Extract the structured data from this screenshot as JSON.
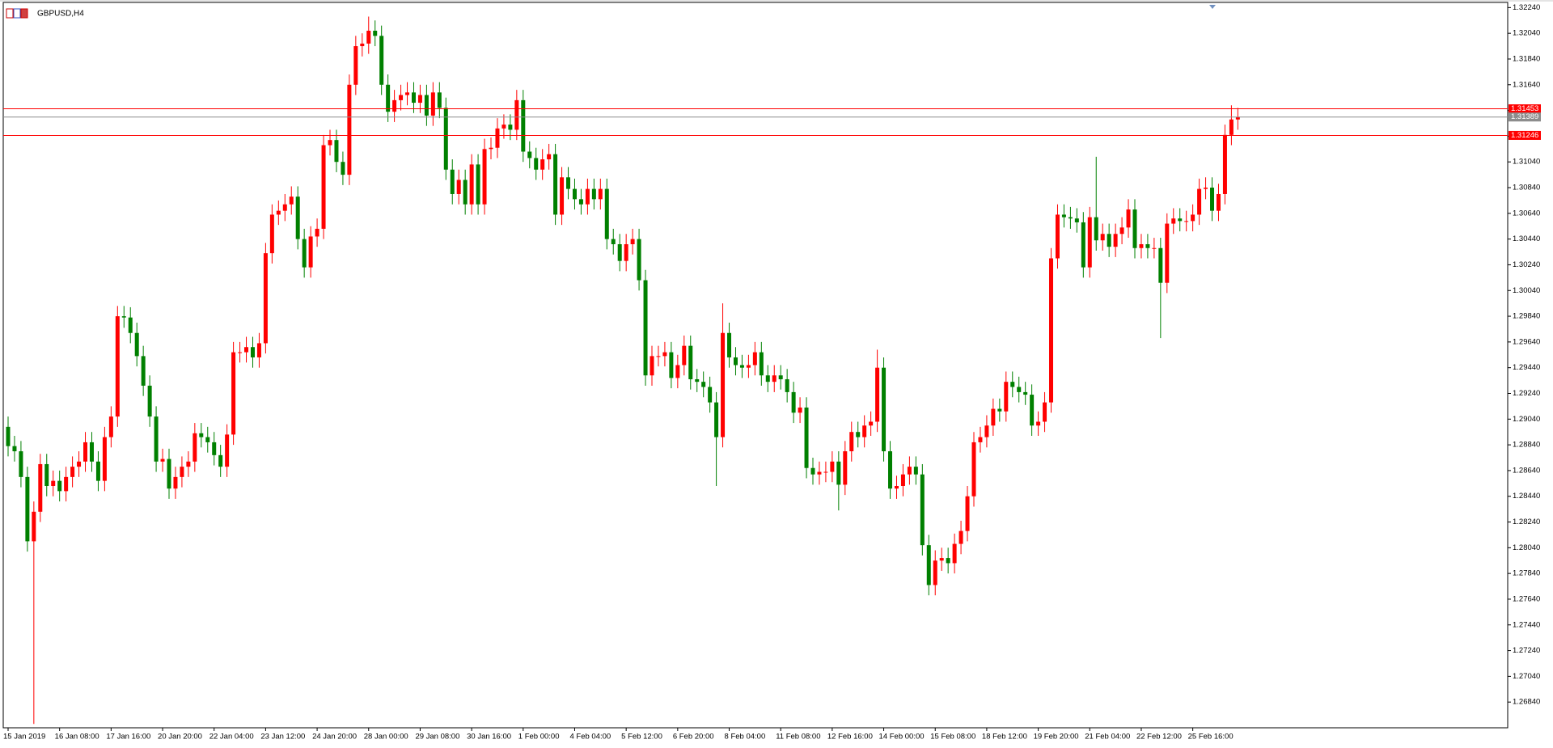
{
  "chart_data": {
    "type": "candlestick",
    "title": "GBPUSD,H4",
    "up_color": "#ff0000",
    "down_color": "#008000",
    "categories": [
      "15 Jan 2019",
      null,
      null,
      null,
      null,
      null,
      null,
      null,
      "16 Jan 08:00",
      null,
      null,
      null,
      null,
      null,
      null,
      null,
      "17 Jan 16:00",
      null,
      null,
      null,
      null,
      null,
      null,
      null,
      "20 Jan 20:00",
      null,
      null,
      null,
      null,
      null,
      null,
      null,
      "22 Jan 04:00",
      null,
      null,
      null,
      null,
      null,
      null,
      null,
      "23 Jan 12:00",
      null,
      null,
      null,
      null,
      null,
      null,
      null,
      "24 Jan 20:00",
      null,
      null,
      null,
      null,
      null,
      null,
      null,
      "28 Jan 00:00",
      null,
      null,
      null,
      null,
      null,
      null,
      null,
      "29 Jan 08:00",
      null,
      null,
      null,
      null,
      null,
      null,
      null,
      "30 Jan 16:00",
      null,
      null,
      null,
      null,
      null,
      null,
      null,
      "1 Feb 00:00",
      null,
      null,
      null,
      null,
      null,
      null,
      null,
      "4 Feb 04:00",
      null,
      null,
      null,
      null,
      null,
      null,
      null,
      "5 Feb 12:00",
      null,
      null,
      null,
      null,
      null,
      null,
      null,
      "6 Feb 20:00",
      null,
      null,
      null,
      null,
      null,
      null,
      null,
      "8 Feb 04:00",
      null,
      null,
      null,
      null,
      null,
      null,
      null,
      "11 Feb 08:00",
      null,
      null,
      null,
      null,
      null,
      null,
      null,
      "12 Feb 16:00",
      null,
      null,
      null,
      null,
      null,
      null,
      null,
      "14 Feb 00:00",
      null,
      null,
      null,
      null,
      null,
      null,
      null,
      "15 Feb 08:00",
      null,
      null,
      null,
      null,
      null,
      null,
      null,
      "18 Feb 12:00",
      null,
      null,
      null,
      null,
      null,
      null,
      null,
      "19 Feb 20:00",
      null,
      null,
      null,
      null,
      null,
      null,
      null,
      "21 Feb 04:00",
      null,
      null,
      null,
      null,
      null,
      null,
      null,
      "22 Feb 12:00",
      null,
      null,
      null,
      null,
      null,
      null,
      null,
      "25 Feb 16:00",
      null,
      null,
      null,
      null,
      null,
      null,
      null
    ],
    "open": [
      1.2898,
      1.2883,
      1.2879,
      1.2859,
      1.2809,
      1.2832,
      1.2869,
      1.2852,
      1.2856,
      1.2848,
      1.2859,
      1.2867,
      1.2871,
      1.2886,
      1.2871,
      1.2856,
      1.289,
      1.2906,
      1.2984,
      1.2983,
      1.2971,
      1.2953,
      1.293,
      1.2906,
      1.2871,
      1.2873,
      1.285,
      1.2859,
      1.2867,
      1.2871,
      1.2893,
      1.289,
      1.2886,
      1.2876,
      1.2867,
      1.2892,
      1.2956,
      1.2956,
      1.296,
      1.2952,
      1.2963,
      1.3033,
      1.3063,
      1.3066,
      1.3071,
      1.3077,
      1.3044,
      1.3022,
      1.3046,
      1.3052,
      1.3117,
      1.3121,
      1.3104,
      1.3094,
      1.3164,
      1.3194,
      1.3196,
      1.3206,
      1.3202,
      1.3164,
      1.3143,
      1.3152,
      1.3156,
      1.3158,
      1.315,
      1.3156,
      1.314,
      1.3158,
      1.3146,
      1.3098,
      1.3079,
      1.309,
      1.3071,
      1.3102,
      1.3071,
      1.3114,
      1.3115,
      1.313,
      1.3133,
      1.3129,
      1.3152,
      1.3112,
      1.3107,
      1.3098,
      1.3106,
      1.311,
      1.3063,
      1.3092,
      1.3083,
      1.3075,
      1.3071,
      1.3083,
      1.3075,
      1.3083,
      1.3044,
      1.304,
      1.3027,
      1.304,
      1.3044,
      1.3012,
      1.2938,
      1.2953,
      1.2953,
      1.2956,
      1.2936,
      1.2946,
      1.2961,
      1.2935,
      1.2933,
      1.2929,
      1.2917,
      1.289,
      1.2971,
      1.2952,
      1.2946,
      1.2944,
      1.2946,
      1.2956,
      1.2938,
      1.2933,
      1.2938,
      1.2935,
      1.2925,
      1.2909,
      1.2913,
      1.2866,
      1.2861,
      1.2863,
      1.2863,
      1.2871,
      1.2853,
      1.2879,
      1.2894,
      1.289,
      1.2899,
      1.2902,
      1.2944,
      1.2879,
      1.285,
      1.2852,
      1.2861,
      1.2867,
      1.2861,
      1.2806,
      1.2775,
      1.2794,
      1.2796,
      1.2792,
      1.2807,
      1.2817,
      1.2844,
      1.2886,
      1.289,
      1.2899,
      1.2912,
      1.291,
      1.2933,
      1.2929,
      1.2925,
      1.2923,
      1.2899,
      1.2902,
      1.2917,
      1.3029,
      1.3063,
      1.3061,
      1.306,
      1.3057,
      1.3022,
      1.3061,
      1.3043,
      1.3048,
      1.3038,
      1.3048,
      1.3053,
      1.3067,
      1.3037,
      1.304,
      1.3037,
      1.3037,
      1.301,
      1.3056,
      1.306,
      1.3058,
      1.3058,
      1.3063,
      1.3083,
      1.3084,
      1.3066,
      1.3079,
      1.3125,
      1.3137
    ],
    "high": [
      1.2906,
      1.2891,
      1.2887,
      1.2867,
      1.284,
      1.2877,
      1.2877,
      1.2864,
      1.2864,
      1.2867,
      1.2875,
      1.2879,
      1.2894,
      1.2894,
      1.2879,
      1.2898,
      1.2914,
      1.2992,
      1.2992,
      1.2991,
      1.2979,
      1.2961,
      1.2938,
      1.2914,
      1.2881,
      1.2881,
      1.2867,
      1.2875,
      1.2879,
      1.2901,
      1.2901,
      1.2898,
      1.2894,
      1.2884,
      1.29,
      1.2964,
      1.2964,
      1.2968,
      1.2968,
      1.2971,
      1.3041,
      1.3071,
      1.3074,
      1.3079,
      1.3085,
      1.3085,
      1.3052,
      1.3054,
      1.306,
      1.3125,
      1.3129,
      1.3129,
      1.3112,
      1.3172,
      1.3202,
      1.3204,
      1.3217,
      1.3214,
      1.321,
      1.3172,
      1.316,
      1.3164,
      1.3166,
      1.3166,
      1.3164,
      1.3164,
      1.3166,
      1.3166,
      1.3154,
      1.3106,
      1.3098,
      1.3098,
      1.311,
      1.311,
      1.3122,
      1.3123,
      1.3138,
      1.3141,
      1.3141,
      1.316,
      1.316,
      1.312,
      1.3115,
      1.3114,
      1.3118,
      1.3118,
      1.31,
      1.31,
      1.3091,
      1.3083,
      1.3091,
      1.3091,
      1.3091,
      1.3091,
      1.3052,
      1.3048,
      1.3048,
      1.3052,
      1.3052,
      1.302,
      1.2961,
      1.2961,
      1.2964,
      1.2964,
      1.2954,
      1.2969,
      1.2969,
      1.2943,
      1.2941,
      1.2937,
      1.2925,
      1.2994,
      1.2979,
      1.296,
      1.2954,
      1.2954,
      1.2964,
      1.2964,
      1.2946,
      1.2946,
      1.2946,
      1.2943,
      1.2933,
      1.2921,
      1.2921,
      1.2874,
      1.2871,
      1.2871,
      1.2879,
      1.2879,
      1.2887,
      1.2902,
      1.2902,
      1.2907,
      1.291,
      1.2958,
      1.2952,
      1.2887,
      1.286,
      1.2869,
      1.2875,
      1.2875,
      1.2869,
      1.2814,
      1.2802,
      1.2804,
      1.2804,
      1.2815,
      1.2825,
      1.2852,
      1.2894,
      1.2898,
      1.2907,
      1.292,
      1.292,
      1.2941,
      1.2941,
      1.2937,
      1.2933,
      1.2931,
      1.291,
      1.2925,
      1.3037,
      1.3071,
      1.3071,
      1.3069,
      1.3068,
      1.3065,
      1.3069,
      1.3108,
      1.3056,
      1.3056,
      1.3056,
      1.3061,
      1.3075,
      1.3075,
      1.3048,
      1.3048,
      1.3045,
      1.3045,
      1.3064,
      1.3068,
      1.3068,
      1.3066,
      1.3071,
      1.3091,
      1.3092,
      1.3092,
      1.3087,
      1.3133,
      1.3148,
      1.3146
    ],
    "low": [
      1.2875,
      1.2871,
      1.2851,
      1.2801,
      1.2667,
      1.2824,
      1.2844,
      1.2844,
      1.284,
      1.284,
      1.2851,
      1.2859,
      1.2863,
      1.2863,
      1.2848,
      1.2848,
      1.2882,
      1.2898,
      1.2975,
      1.2963,
      1.2945,
      1.2922,
      1.2898,
      1.2863,
      1.2863,
      1.2842,
      1.2842,
      1.2851,
      1.2859,
      1.2863,
      1.2882,
      1.2878,
      1.2868,
      1.2859,
      1.2859,
      1.2884,
      1.2948,
      1.2948,
      1.2944,
      1.2944,
      1.2955,
      1.3025,
      1.3055,
      1.3058,
      1.3063,
      1.3036,
      1.3014,
      1.3014,
      1.3038,
      1.3044,
      1.3109,
      1.3096,
      1.3086,
      1.3086,
      1.3156,
      1.3186,
      1.3188,
      1.3194,
      1.3156,
      1.3135,
      1.3135,
      1.3144,
      1.3148,
      1.3142,
      1.3142,
      1.3132,
      1.3132,
      1.3138,
      1.309,
      1.3071,
      1.3071,
      1.3063,
      1.3063,
      1.3063,
      1.3063,
      1.3106,
      1.3107,
      1.3122,
      1.3121,
      1.3121,
      1.3104,
      1.3099,
      1.309,
      1.309,
      1.3098,
      1.3055,
      1.3055,
      1.3075,
      1.3067,
      1.3063,
      1.3063,
      1.3067,
      1.3067,
      1.3036,
      1.3032,
      1.3019,
      1.3019,
      1.3032,
      1.3004,
      1.293,
      1.293,
      1.2945,
      1.2945,
      1.2928,
      1.2928,
      1.2938,
      1.2927,
      1.2925,
      1.2921,
      1.2909,
      1.2852,
      1.2882,
      1.2944,
      1.2938,
      1.2936,
      1.2936,
      1.2938,
      1.293,
      1.2925,
      1.2925,
      1.2927,
      1.2917,
      1.2901,
      1.2901,
      1.2858,
      1.2853,
      1.2853,
      1.2855,
      1.2855,
      1.2833,
      1.2845,
      1.2871,
      1.2882,
      1.2882,
      1.2891,
      1.2894,
      1.2871,
      1.2842,
      1.2842,
      1.2844,
      1.2853,
      1.2853,
      1.2798,
      1.2767,
      1.2767,
      1.2786,
      1.2784,
      1.2784,
      1.2799,
      1.2809,
      1.2836,
      1.2878,
      1.2882,
      1.2891,
      1.2902,
      1.2902,
      1.2921,
      1.2917,
      1.2915,
      1.2891,
      1.2891,
      1.2894,
      1.2909,
      1.3021,
      1.3053,
      1.3052,
      1.3049,
      1.3014,
      1.3014,
      1.3035,
      1.3035,
      1.303,
      1.303,
      1.304,
      1.3045,
      1.3029,
      1.3029,
      1.3029,
      1.3029,
      1.2967,
      1.3002,
      1.3048,
      1.305,
      1.305,
      1.305,
      1.3055,
      1.3075,
      1.3058,
      1.3058,
      1.3071,
      1.3117,
      1.3129
    ],
    "close": [
      1.2883,
      1.2879,
      1.2859,
      1.2809,
      1.2832,
      1.2869,
      1.2852,
      1.2856,
      1.2848,
      1.2859,
      1.2867,
      1.2871,
      1.2886,
      1.2871,
      1.2856,
      1.289,
      1.2906,
      1.2984,
      1.2983,
      1.2971,
      1.2953,
      1.293,
      1.2906,
      1.2871,
      1.2873,
      1.285,
      1.2859,
      1.2867,
      1.2871,
      1.2893,
      1.289,
      1.2886,
      1.2876,
      1.2867,
      1.2892,
      1.2956,
      1.2956,
      1.296,
      1.2952,
      1.2963,
      1.3033,
      1.3063,
      1.3066,
      1.3071,
      1.3077,
      1.3044,
      1.3022,
      1.3046,
      1.3052,
      1.3117,
      1.3121,
      1.3104,
      1.3094,
      1.3164,
      1.3194,
      1.3196,
      1.3206,
      1.3202,
      1.3164,
      1.3143,
      1.3152,
      1.3156,
      1.3158,
      1.315,
      1.3156,
      1.314,
      1.3158,
      1.3146,
      1.3098,
      1.3079,
      1.309,
      1.3071,
      1.3102,
      1.3071,
      1.3114,
      1.3115,
      1.313,
      1.3133,
      1.3129,
      1.3152,
      1.3112,
      1.3107,
      1.3098,
      1.3106,
      1.311,
      1.3063,
      1.3092,
      1.3083,
      1.3075,
      1.3071,
      1.3083,
      1.3075,
      1.3083,
      1.3044,
      1.304,
      1.3027,
      1.304,
      1.3044,
      1.3012,
      1.2938,
      1.2953,
      1.2953,
      1.2956,
      1.2936,
      1.2946,
      1.2961,
      1.2935,
      1.2933,
      1.2929,
      1.2917,
      1.289,
      1.2971,
      1.2952,
      1.2946,
      1.2944,
      1.2946,
      1.2956,
      1.2938,
      1.2933,
      1.2938,
      1.2935,
      1.2925,
      1.2909,
      1.2913,
      1.2866,
      1.2861,
      1.2863,
      1.2863,
      1.2871,
      1.2853,
      1.2879,
      1.2894,
      1.289,
      1.2899,
      1.2902,
      1.2944,
      1.2879,
      1.285,
      1.2852,
      1.2861,
      1.2867,
      1.2861,
      1.2806,
      1.2775,
      1.2794,
      1.2796,
      1.2792,
      1.2807,
      1.2817,
      1.2844,
      1.2886,
      1.289,
      1.2899,
      1.2912,
      1.291,
      1.2933,
      1.2929,
      1.2925,
      1.2923,
      1.2899,
      1.2902,
      1.2917,
      1.3029,
      1.3063,
      1.3061,
      1.306,
      1.3057,
      1.3022,
      1.3061,
      1.3043,
      1.3048,
      1.3038,
      1.3048,
      1.3053,
      1.3067,
      1.3037,
      1.304,
      1.3037,
      1.3037,
      1.301,
      1.3056,
      1.306,
      1.3058,
      1.3058,
      1.3063,
      1.3083,
      1.3084,
      1.3066,
      1.3079,
      1.3125,
      1.3137,
      1.31389
    ],
    "ylim": [
      1.2664,
      1.3228
    ],
    "yticks": [
      {
        "value": 1.2684,
        "label": "1.26840"
      },
      {
        "value": 1.2704,
        "label": "1.27040"
      },
      {
        "value": 1.2724,
        "label": "1.27240"
      },
      {
        "value": 1.2744,
        "label": "1.27440"
      },
      {
        "value": 1.2764,
        "label": "1.27640"
      },
      {
        "value": 1.2784,
        "label": "1.27840"
      },
      {
        "value": 1.2804,
        "label": "1.28040"
      },
      {
        "value": 1.2824,
        "label": "1.28240"
      },
      {
        "value": 1.2844,
        "label": "1.28440"
      },
      {
        "value": 1.2864,
        "label": "1.28640"
      },
      {
        "value": 1.2884,
        "label": "1.28840"
      },
      {
        "value": 1.2904,
        "label": "1.29040"
      },
      {
        "value": 1.2924,
        "label": "1.29240"
      },
      {
        "value": 1.2944,
        "label": "1.29440"
      },
      {
        "value": 1.2964,
        "label": "1.29640"
      },
      {
        "value": 1.2984,
        "label": "1.29840"
      },
      {
        "value": 1.3004,
        "label": "1.30040"
      },
      {
        "value": 1.3024,
        "label": "1.30240"
      },
      {
        "value": 1.3044,
        "label": "1.30440"
      },
      {
        "value": 1.3064,
        "label": "1.30640"
      },
      {
        "value": 1.3084,
        "label": "1.30840"
      },
      {
        "value": 1.3104,
        "label": "1.31040"
      },
      {
        "value": 1.3124,
        "label": "1.31240"
      },
      {
        "value": 1.3144,
        "label": "1.31440"
      },
      {
        "value": 1.3164,
        "label": "1.31640"
      },
      {
        "value": 1.3184,
        "label": "1.31840"
      },
      {
        "value": 1.3204,
        "label": "1.32040"
      },
      {
        "value": 1.3224,
        "label": "1.32240"
      }
    ],
    "levels": [
      {
        "value": 1.31453,
        "color": "#ff0000"
      },
      {
        "value": 1.31246,
        "color": "#ff0000"
      }
    ],
    "last_price": {
      "value": 1.31389,
      "color": "#8c8c8c"
    }
  }
}
